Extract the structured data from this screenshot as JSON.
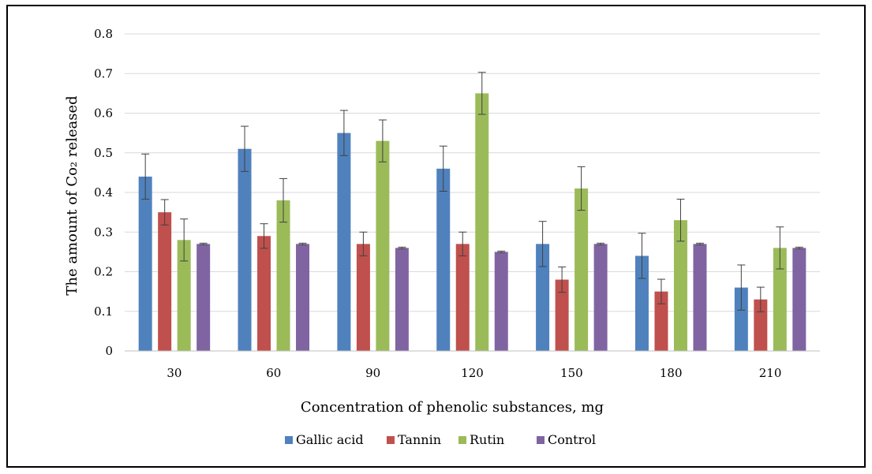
{
  "chart_data": {
    "type": "bar",
    "categories": [
      "30",
      "60",
      "90",
      "120",
      "150",
      "180",
      "210"
    ],
    "series": [
      {
        "name": "Gallic acid",
        "color": "#4F81BD",
        "values": [
          0.44,
          0.51,
          0.55,
          0.46,
          0.27,
          0.24,
          0.16
        ],
        "errors": [
          0.057,
          0.057,
          0.057,
          0.057,
          0.057,
          0.057,
          0.057
        ]
      },
      {
        "name": "Tannin",
        "color": "#C0504D",
        "values": [
          0.35,
          0.29,
          0.27,
          0.27,
          0.18,
          0.15,
          0.13
        ],
        "errors": [
          0.032,
          0.031,
          0.03,
          0.03,
          0.032,
          0.031,
          0.031
        ]
      },
      {
        "name": "Rutin",
        "color": "#9BBB59",
        "values": [
          0.28,
          0.38,
          0.53,
          0.65,
          0.41,
          0.33,
          0.26
        ],
        "errors": [
          0.053,
          0.055,
          0.053,
          0.053,
          0.055,
          0.053,
          0.053
        ]
      },
      {
        "name": "Control",
        "color": "#8064A2",
        "values": [
          0.27,
          0.27,
          0.26,
          0.25,
          0.27,
          0.27,
          0.26
        ],
        "errors": [
          0.002,
          0.002,
          0.002,
          0.002,
          0.002,
          0.002,
          0.002
        ]
      }
    ],
    "title": "",
    "xlabel": "Concentration of phenolic substances, mg",
    "ylabel": "The amount of Co₂ released",
    "ylim": [
      0,
      0.8
    ],
    "yticks": [
      "0",
      "0.1",
      "0.2",
      "0.3",
      "0.4",
      "0.5",
      "0.6",
      "0.7",
      "0.8"
    ],
    "grid": true,
    "legend_position": "bottom"
  }
}
